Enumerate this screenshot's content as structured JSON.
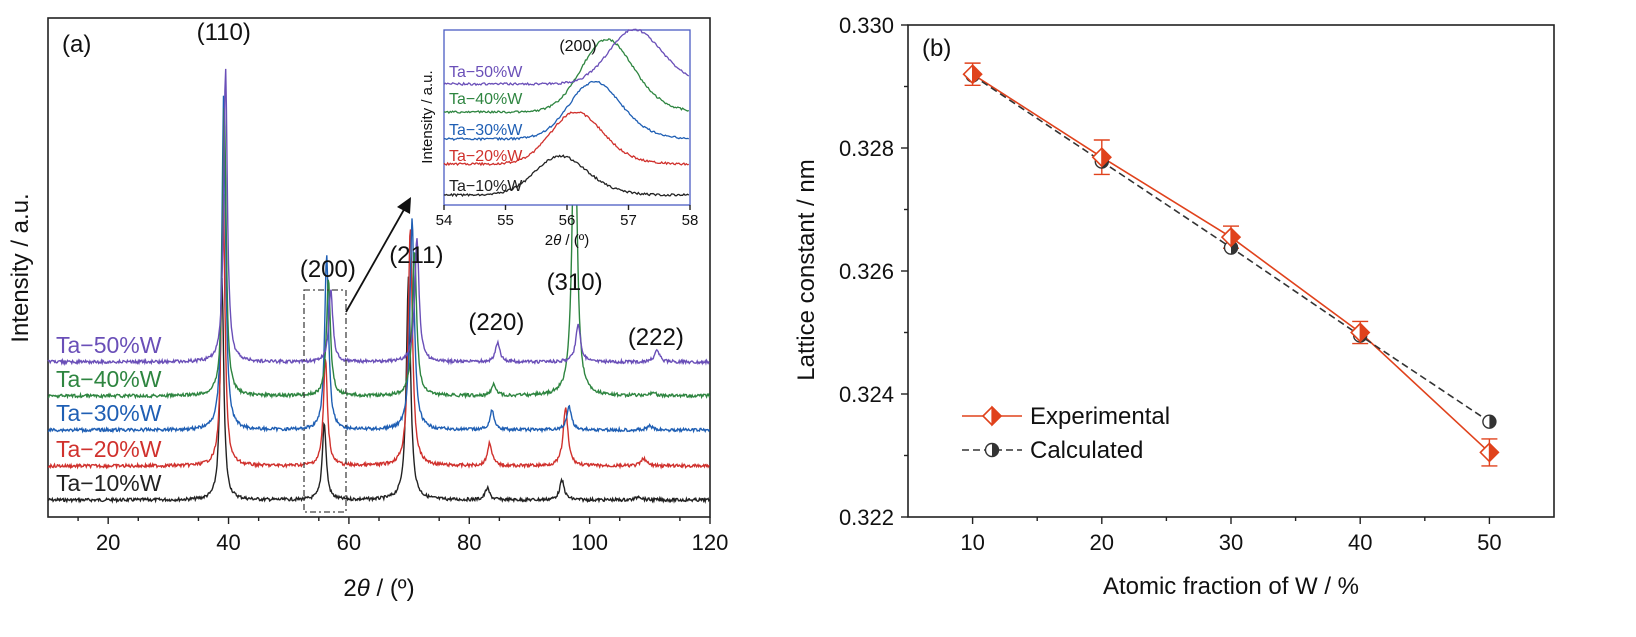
{
  "chart_data": [
    {
      "panel_label": "(a)",
      "type": "line",
      "xlabel_prefix": "2",
      "xlabel_theta": "θ",
      "xlabel_suffix": " / (º)",
      "ylabel": "Intensity / a.u.",
      "xlim": [
        10,
        120
      ],
      "x_ticks": [
        "20",
        "40",
        "60",
        "80",
        "100",
        "120"
      ],
      "peaks": [
        {
          "label": "(110)",
          "x": 39.2
        },
        {
          "label": "(200)",
          "x": 56.5
        },
        {
          "label": "(211)",
          "x": 71.2
        },
        {
          "label": "(220)",
          "x": 84.5
        },
        {
          "label": "(310)",
          "x": 97.5
        },
        {
          "label": "(222)",
          "x": 111
        }
      ],
      "series": [
        {
          "name": "Ta−10%W",
          "color": "#222222",
          "peaks": [
            [
              38.9,
              0.58
            ],
            [
              55.9,
              0.2
            ],
            [
              69.9,
              0.58
            ],
            [
              83.0,
              0.03
            ],
            [
              95.4,
              0.05
            ],
            [
              108.2,
              0.01
            ]
          ]
        },
        {
          "name": "Ta−20%W",
          "color": "#d0312d",
          "peaks": [
            [
              39.1,
              0.72
            ],
            [
              56.1,
              0.28
            ],
            [
              70.2,
              0.62
            ],
            [
              83.4,
              0.06
            ],
            [
              96.0,
              0.15
            ],
            [
              109.0,
              0.02
            ]
          ]
        },
        {
          "name": "Ta−30%W",
          "color": "#1f5fb4",
          "peaks": [
            [
              39.2,
              0.88
            ],
            [
              56.3,
              0.45
            ],
            [
              70.5,
              0.55
            ],
            [
              83.8,
              0.05
            ],
            [
              96.6,
              0.06
            ],
            [
              110.0,
              0.01
            ]
          ]
        },
        {
          "name": "Ta−40%W",
          "color": "#2e8540",
          "peaks": [
            [
              39.3,
              0.75
            ],
            [
              56.6,
              0.3
            ],
            [
              70.9,
              0.38
            ],
            [
              84.1,
              0.03
            ],
            [
              97.5,
              0.8
            ],
            [
              110.5,
              0.01
            ]
          ]
        },
        {
          "name": "Ta−50%W",
          "color": "#6a4fb8",
          "peaks": [
            [
              39.5,
              0.76
            ],
            [
              57.0,
              0.19
            ],
            [
              71.3,
              0.32
            ],
            [
              84.7,
              0.05
            ],
            [
              98.1,
              0.1
            ],
            [
              111.2,
              0.03
            ]
          ]
        }
      ],
      "inset": {
        "xlabel_prefix": "2",
        "xlabel_theta": "θ",
        "xlabel_suffix": " / (º)",
        "ylabel": "Intensity / a.u.",
        "xlim": [
          54,
          58
        ],
        "x_ticks": [
          "54",
          "55",
          "56",
          "57",
          "58"
        ],
        "peak_label": "(200)",
        "peak_centers": [
          55.85,
          56.1,
          56.4,
          56.6,
          57.05
        ]
      }
    },
    {
      "panel_label": "(b)",
      "type": "scatter",
      "xlabel": "Atomic fraction of W / %",
      "ylabel": "Lattice constant / nm",
      "xlim": [
        5,
        55
      ],
      "ylim": [
        0.322,
        0.33
      ],
      "x_ticks": [
        "10",
        "20",
        "30",
        "40",
        "50"
      ],
      "y_ticks": [
        "0.322",
        "0.324",
        "0.326",
        "0.328",
        "0.330"
      ],
      "x": [
        10,
        20,
        30,
        40,
        50
      ],
      "series": [
        {
          "name": "Experimental",
          "color": "#e0421c",
          "marker": "half-filled-diamond",
          "line": "solid",
          "values": [
            0.3292,
            0.32785,
            0.32655,
            0.325,
            0.32305
          ],
          "error": [
            0.00018,
            0.00028,
            0.00018,
            0.00018,
            0.00022
          ]
        },
        {
          "name": "Calculated",
          "color": "#333333",
          "marker": "half-filled-circle",
          "line": "dashed",
          "values": [
            0.32918,
            0.32778,
            0.32638,
            0.32495,
            0.32355
          ]
        }
      ]
    }
  ]
}
